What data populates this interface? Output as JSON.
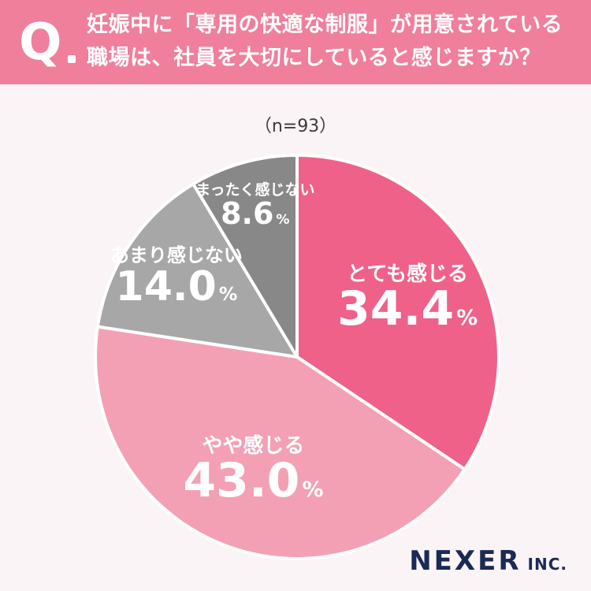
{
  "header": {
    "q_mark": "Q",
    "line1": "妊娠中に「専用の快適な制服」が用意されている",
    "line2": "職場は、社員を大切にしていると感じますか？"
  },
  "sample_size": "（n=93）",
  "chart_data": {
    "type": "pie",
    "categories": [
      "とても感じる",
      "やや感じる",
      "あまり感じない",
      "まったく感じない"
    ],
    "values": [
      34.4,
      43.0,
      14.0,
      8.6
    ],
    "unit": "%",
    "colors": [
      "#ef6189",
      "#f4a0b4",
      "#a7a7a7",
      "#888888"
    ]
  },
  "logo": {
    "main": "NEXER",
    "sub": "INC."
  }
}
